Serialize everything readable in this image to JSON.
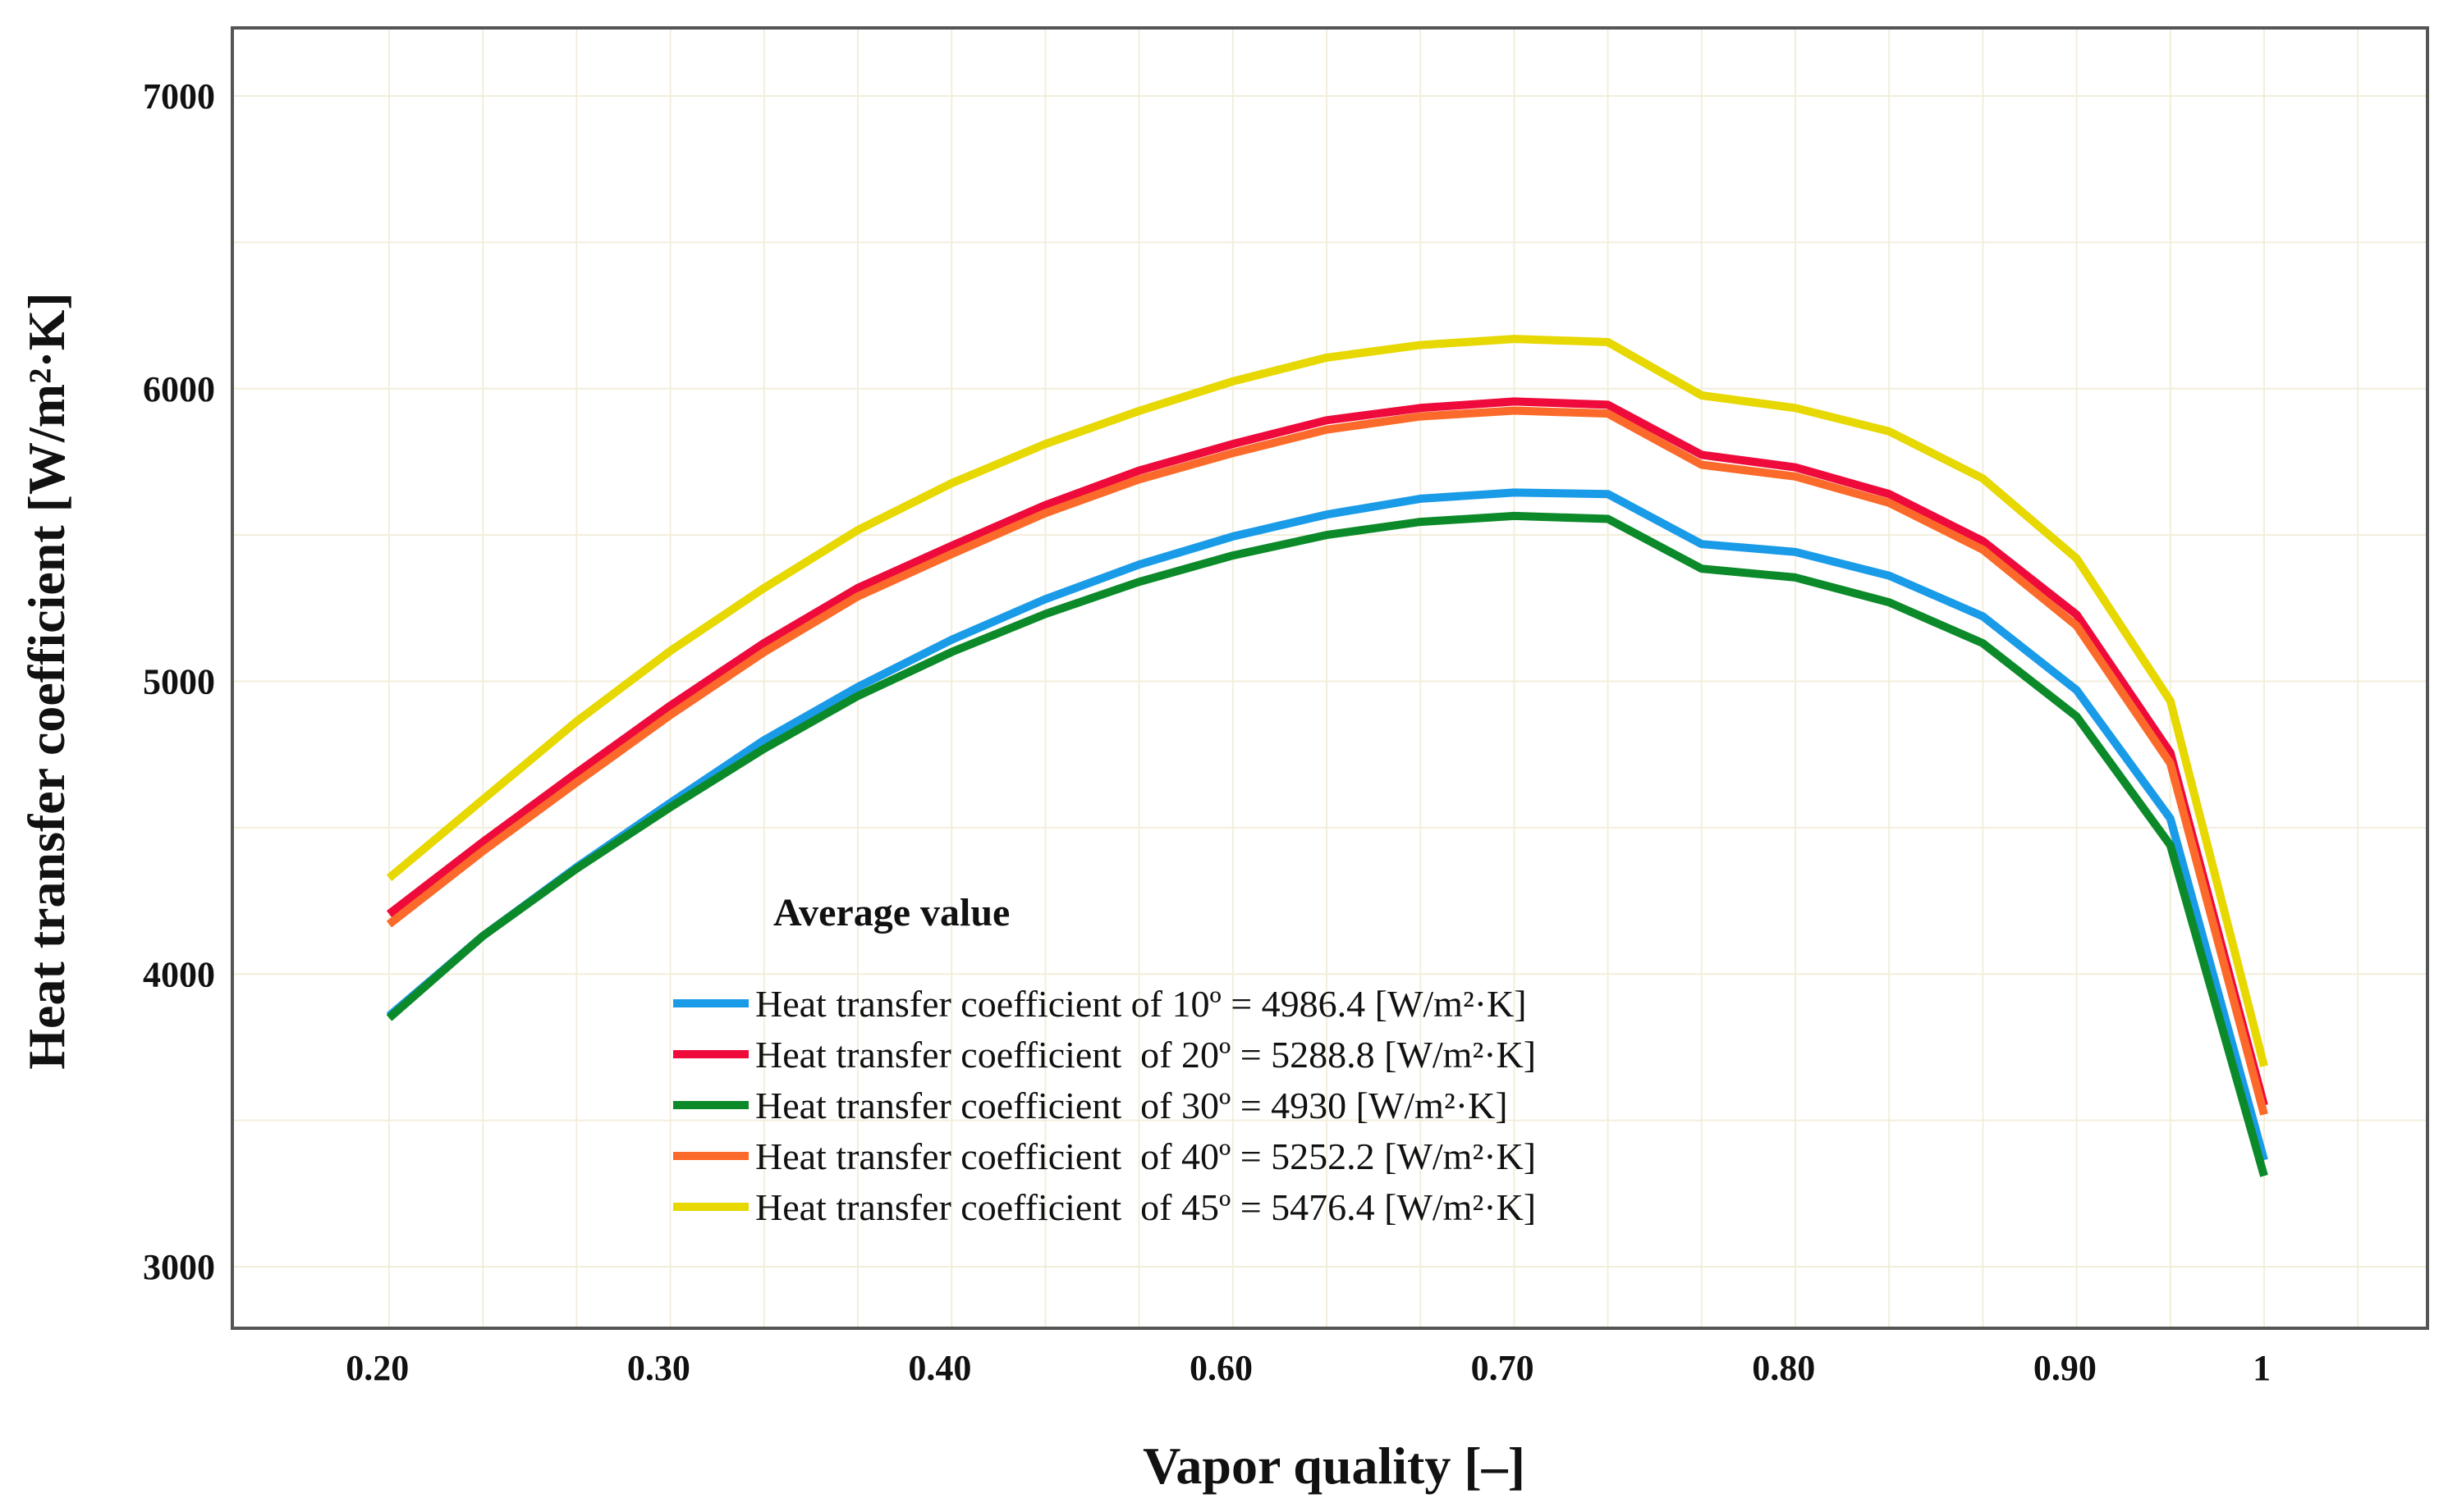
{
  "chart_data": {
    "type": "line",
    "title": "",
    "xlabel": "Vapor quality [–]",
    "ylabel": "Heat transfer coefficient [W/m²·K]",
    "xlim": [
      0.2,
      1.0
    ],
    "ylim": [
      2780,
      7230
    ],
    "grid": true,
    "x": [
      0.2,
      0.24,
      0.28,
      0.32,
      0.36,
      0.4,
      0.44,
      0.48,
      0.52,
      0.56,
      0.6,
      0.64,
      0.68,
      0.72,
      0.76,
      0.8,
      0.84,
      0.88,
      0.92,
      0.96,
      1.0
    ],
    "x_ticks": [
      {
        "label": "0.20",
        "at": 0.195
      },
      {
        "label": "0.30",
        "at": 0.315
      },
      {
        "label": "0.40",
        "at": 0.435
      },
      {
        "label": "0.60",
        "at": 0.555
      },
      {
        "label": "0.70",
        "at": 0.675
      },
      {
        "label": "0.80",
        "at": 0.795
      },
      {
        "label": "0.90",
        "at": 0.915
      },
      {
        "label": "1",
        "at": 0.999
      }
    ],
    "y_ticks": [
      3000,
      4000,
      5000,
      6000,
      7000
    ],
    "legend_title": "Average value",
    "legend_position": "center-left",
    "series": [
      {
        "name": "Heat transfer coefficient of 10º = 4986.4 [W/m²·K]",
        "color": "#1a9be8",
        "values": [
          3857,
          4130,
          4365,
          4585,
          4799,
          4981,
          5142,
          5281,
          5399,
          5495,
          5570,
          5624,
          5645,
          5640,
          5469,
          5442,
          5361,
          5222,
          4970,
          4531,
          3364
        ]
      },
      {
        "name": "Heat transfer coefficient  of 20º = 5288.8 [W/m²·K]",
        "color": "#ee0a3a",
        "values": [
          4205,
          4451,
          4687,
          4917,
          5131,
          5319,
          5463,
          5602,
          5720,
          5811,
          5892,
          5934,
          5956,
          5945,
          5774,
          5731,
          5640,
          5479,
          5228,
          4756,
          3551
        ]
      },
      {
        "name": "Heat transfer coefficient  of 30º = 4930 [W/m²·K]",
        "color": "#0c8a2a",
        "values": [
          3850,
          4130,
          4360,
          4570,
          4770,
          4950,
          5100,
          5230,
          5340,
          5430,
          5500,
          5545,
          5565,
          5555,
          5385,
          5355,
          5270,
          5130,
          4880,
          4440,
          3310
        ]
      },
      {
        "name": "Heat transfer coefficient  of 40º = 5252.2 [W/m²·K]",
        "color": "#fb6a2a",
        "values": [
          4170,
          4420,
          4655,
          4885,
          5100,
          5290,
          5435,
          5575,
          5690,
          5780,
          5860,
          5905,
          5925,
          5915,
          5740,
          5700,
          5610,
          5450,
          5190,
          4720,
          3520
        ]
      },
      {
        "name": "Heat transfer coefficient  of 45º = 5476.4 [W/m²·K]",
        "color": "#e6d800",
        "values": [
          4328,
          4596,
          4863,
          5104,
          5319,
          5517,
          5677,
          5811,
          5924,
          6025,
          6106,
          6149,
          6170,
          6159,
          5977,
          5934,
          5854,
          5693,
          5420,
          4933,
          3685
        ]
      }
    ]
  }
}
